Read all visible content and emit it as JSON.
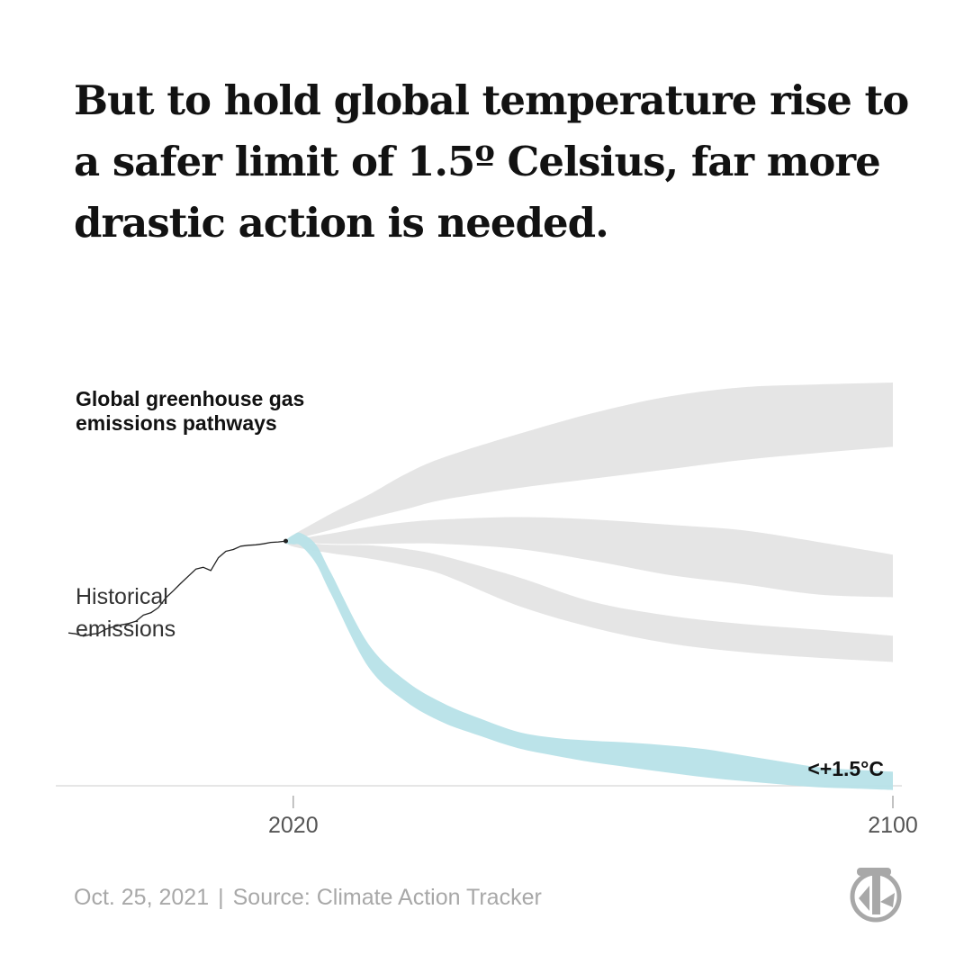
{
  "headline": "But to hold global temperature rise to a safer limit of 1.5º Celsius, far more drastic action is needed.",
  "footer": {
    "date": "Oct. 25, 2021",
    "separator": "|",
    "source": "Source: Climate Action Tracker"
  },
  "colors": {
    "text": "#121212",
    "muted": "#a8a8a8",
    "band": "#e3e3e3",
    "target_band": "#b7e1e8",
    "history_line": "#222222",
    "baseline": "#dddddd"
  },
  "icons": {
    "logo": "nyt-t-logo-icon"
  },
  "chart_data": {
    "type": "area",
    "title": "Global greenhouse gas emissions pathways",
    "xlabel": "",
    "ylabel": "",
    "xlim": [
      1990,
      2100
    ],
    "ylim": [
      0,
      110
    ],
    "x_ticks": [
      {
        "value": 2020,
        "label": "2020"
      },
      {
        "value": 2100,
        "label": "2100"
      }
    ],
    "grid": false,
    "annotations": [
      {
        "id": "title",
        "text": "Global greenhouse gas emissions pathways"
      },
      {
        "id": "history",
        "text": "Historical emissions"
      }
    ],
    "historical": {
      "name": "Historical emissions",
      "x": [
        1990,
        1991,
        1992,
        1993,
        1994,
        1995,
        1996,
        1997,
        1998,
        1999,
        2000,
        2001,
        2002,
        2003,
        2004,
        2005,
        2006,
        2007,
        2008,
        2009,
        2010,
        2011,
        2012,
        2013,
        2014,
        2015,
        2016,
        2017,
        2018,
        2019
      ],
      "y": [
        32.6,
        32.4,
        31.9,
        32.3,
        32.5,
        33.4,
        33.9,
        34.3,
        34.6,
        35.1,
        36.4,
        36.9,
        38.0,
        40.1,
        41.6,
        43.2,
        44.7,
        46.2,
        46.6,
        45.9,
        48.6,
        50.0,
        50.4,
        51.1,
        51.3,
        51.4,
        51.6,
        51.9,
        52.0,
        52.2
      ]
    },
    "series": [
      {
        "name": "",
        "x": [
          2019,
          2020,
          2025,
          2030,
          2035,
          2040,
          2050,
          2060,
          2070,
          2080,
          2090,
          2100
        ],
        "upper": [
          52.2,
          53.5,
          58.0,
          62.0,
          66.5,
          70.0,
          75.0,
          79.5,
          83.0,
          85.0,
          85.6,
          86.0
        ],
        "lower": [
          52.2,
          52.5,
          54.6,
          57.0,
          59.0,
          61.0,
          63.5,
          65.5,
          67.5,
          69.5,
          71.0,
          72.3
        ]
      },
      {
        "name": "",
        "x": [
          2019,
          2020,
          2025,
          2030,
          2035,
          2040,
          2050,
          2060,
          2070,
          2080,
          2090,
          2100
        ],
        "upper": [
          52.2,
          52.5,
          53.8,
          55.2,
          56.2,
          56.8,
          57.3,
          56.8,
          55.7,
          54.5,
          52.0,
          49.3
        ],
        "lower": [
          52.2,
          52.0,
          51.6,
          51.6,
          51.7,
          51.6,
          50.5,
          48.0,
          45.0,
          43.0,
          40.8,
          40.2
        ]
      },
      {
        "name": "",
        "x": [
          2019,
          2020,
          2025,
          2030,
          2035,
          2040,
          2050,
          2060,
          2070,
          2080,
          2090,
          2100
        ],
        "upper": [
          52.2,
          52.0,
          51.4,
          51.3,
          50.5,
          49.0,
          44.5,
          39.2,
          36.3,
          34.5,
          33.3,
          32.0
        ],
        "lower": [
          52.2,
          51.0,
          49.6,
          48.5,
          47.0,
          45.0,
          38.4,
          33.7,
          30.4,
          28.5,
          27.3,
          26.4
        ]
      },
      {
        "name": "<+1.5°C",
        "x": [
          2019,
          2020,
          2021,
          2023,
          2025,
          2030,
          2035,
          2040,
          2045,
          2050,
          2055,
          2060,
          2065,
          2070,
          2075,
          2080,
          2085,
          2090,
          2095,
          2100
        ],
        "upper": [
          52.4,
          53.5,
          53.9,
          51.5,
          45.5,
          30.3,
          22.4,
          17.6,
          14.3,
          11.5,
          10.2,
          9.6,
          9.2,
          8.6,
          7.8,
          6.5,
          5.2,
          4.0,
          3.4,
          3.0
        ],
        "lower": [
          51.6,
          51.5,
          51.2,
          47.5,
          41.0,
          25.4,
          18.0,
          13.5,
          10.6,
          8.0,
          6.4,
          5.0,
          3.9,
          2.8,
          1.8,
          1.0,
          0.3,
          -0.3,
          -0.6,
          -0.9
        ]
      }
    ]
  }
}
